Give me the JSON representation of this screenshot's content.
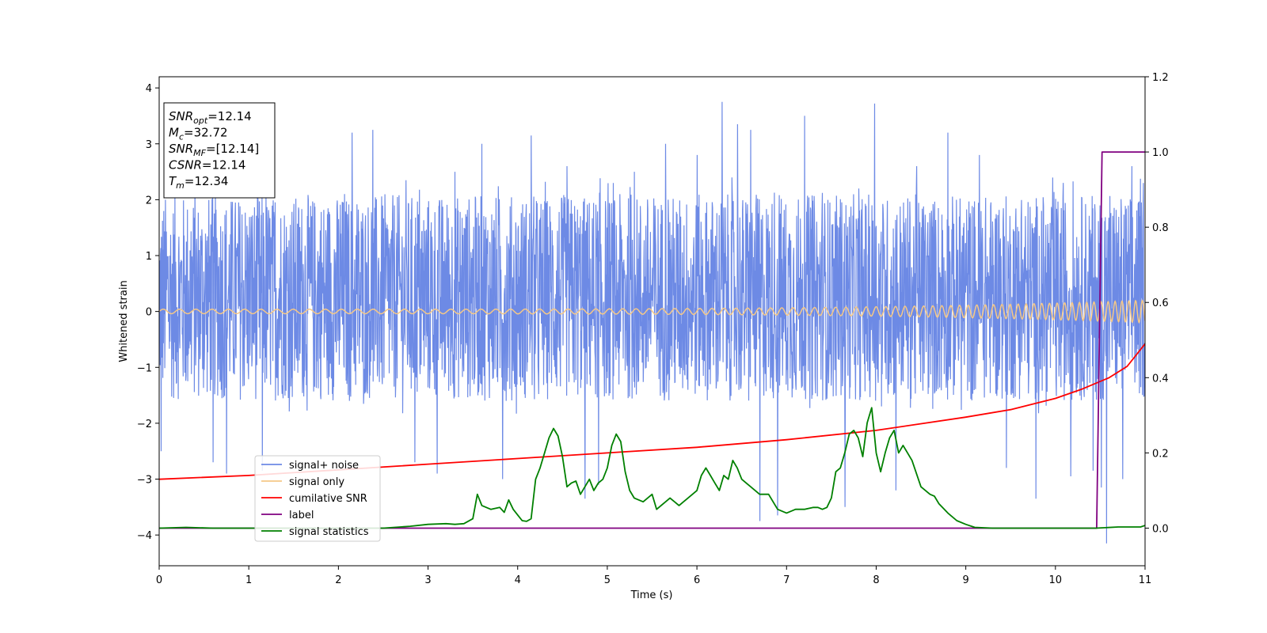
{
  "chart_data": {
    "type": "line",
    "xlabel": "Time (s)",
    "ylabel": "Whitened strain",
    "xlim": [
      0,
      11
    ],
    "ylim": [
      -4.55,
      4.2
    ],
    "y2lim": [
      -0.1,
      1.2
    ],
    "x_ticks": [
      "0",
      "1",
      "2",
      "3",
      "4",
      "5",
      "6",
      "7",
      "8",
      "9",
      "10",
      "11"
    ],
    "y_ticks": [
      "−4",
      "−3",
      "−2",
      "−1",
      "0",
      "1",
      "2",
      "3",
      "4"
    ],
    "y2_ticks": [
      "0.0",
      "0.2",
      "0.4",
      "0.6",
      "0.8",
      "1.0",
      "1.2"
    ],
    "grid": false,
    "legend_position": "lower-left",
    "annotation_lines": [
      {
        "base": "SNR",
        "sub": "opt",
        "value": "=12.14"
      },
      {
        "base": "M",
        "sub": "c",
        "value": "=32.72"
      },
      {
        "base": "SNR",
        "sub": "MF",
        "value": "=[12.14]"
      },
      {
        "base": "CSNR",
        "sub": "",
        "value": "=12.14"
      },
      {
        "base": "T",
        "sub": "m",
        "value": "=12.34"
      }
    ],
    "series": [
      {
        "name": "signal+ noise",
        "color": "#6d8ae5",
        "axis": "left",
        "kind": "noise",
        "range": [
          -1.6,
          2.1
        ],
        "peaks": [
          [
            0.02,
            -2.5
          ],
          [
            0.6,
            -2.7
          ],
          [
            0.75,
            -2.9
          ],
          [
            1.15,
            -2.85
          ],
          [
            2.15,
            3.2
          ],
          [
            2.38,
            3.25
          ],
          [
            2.85,
            -2.7
          ],
          [
            3.1,
            -2.9
          ],
          [
            3.3,
            2.5
          ],
          [
            3.6,
            3.0
          ],
          [
            3.83,
            -3.0
          ],
          [
            4.15,
            3.15
          ],
          [
            4.55,
            2.6
          ],
          [
            4.75,
            -3.35
          ],
          [
            4.9,
            -3.1
          ],
          [
            5.3,
            2.5
          ],
          [
            5.65,
            3.0
          ],
          [
            6.0,
            2.8
          ],
          [
            6.28,
            3.75
          ],
          [
            6.45,
            3.35
          ],
          [
            6.6,
            3.25
          ],
          [
            6.7,
            -3.75
          ],
          [
            6.9,
            -3.65
          ],
          [
            7.2,
            3.5
          ],
          [
            7.65,
            -3.5
          ],
          [
            7.98,
            3.72
          ],
          [
            8.22,
            -3.2
          ],
          [
            8.45,
            2.6
          ],
          [
            8.8,
            3.2
          ],
          [
            9.15,
            2.8
          ],
          [
            9.45,
            -2.8
          ],
          [
            9.78,
            -3.35
          ],
          [
            10.17,
            -2.95
          ],
          [
            10.42,
            -2.85
          ],
          [
            10.51,
            -3.15
          ],
          [
            10.57,
            -4.15
          ],
          [
            10.75,
            -3.0
          ],
          [
            10.85,
            2.6
          ],
          [
            10.98,
            2.3
          ]
        ]
      },
      {
        "name": "signal only",
        "color": "#f5c887",
        "axis": "left",
        "kind": "chirp",
        "amplitude_start": 0.04,
        "amplitude_end": 0.2,
        "frequency_start": 5.5,
        "frequency_end": 13.5
      },
      {
        "name": "cumilative SNR",
        "color": "#ff0000",
        "axis": "right",
        "x": [
          0,
          1,
          2,
          3,
          4,
          5,
          6,
          7,
          8,
          9,
          9.5,
          10,
          10.3,
          10.6,
          10.8,
          11
        ],
        "values": [
          0.13,
          0.14,
          0.155,
          0.17,
          0.185,
          0.2,
          0.215,
          0.235,
          0.26,
          0.295,
          0.315,
          0.345,
          0.37,
          0.4,
          0.43,
          0.49
        ]
      },
      {
        "name": "label",
        "color": "#800080",
        "axis": "right",
        "x": [
          0,
          10.46,
          10.52,
          11
        ],
        "values": [
          0.0,
          0.0,
          1.0,
          1.0
        ]
      },
      {
        "name": "signal statistics",
        "color": "#008000",
        "axis": "right",
        "x": [
          0,
          0.3,
          0.6,
          1.0,
          1.5,
          2.0,
          2.5,
          2.8,
          3.0,
          3.2,
          3.3,
          3.4,
          3.5,
          3.55,
          3.6,
          3.7,
          3.8,
          3.85,
          3.9,
          3.95,
          4.0,
          4.05,
          4.1,
          4.15,
          4.2,
          4.25,
          4.3,
          4.35,
          4.4,
          4.45,
          4.5,
          4.55,
          4.6,
          4.65,
          4.7,
          4.8,
          4.85,
          4.9,
          4.95,
          5.0,
          5.05,
          5.1,
          5.15,
          5.2,
          5.25,
          5.3,
          5.4,
          5.5,
          5.55,
          5.6,
          5.65,
          5.7,
          5.8,
          5.9,
          6.0,
          6.05,
          6.1,
          6.15,
          6.2,
          6.25,
          6.3,
          6.35,
          6.4,
          6.45,
          6.5,
          6.55,
          6.6,
          6.7,
          6.8,
          6.9,
          7.0,
          7.1,
          7.2,
          7.3,
          7.35,
          7.4,
          7.45,
          7.5,
          7.55,
          7.6,
          7.65,
          7.7,
          7.75,
          7.8,
          7.85,
          7.9,
          7.95,
          8.0,
          8.05,
          8.1,
          8.15,
          8.2,
          8.25,
          8.3,
          8.4,
          8.5,
          8.55,
          8.6,
          8.65,
          8.7,
          8.8,
          8.9,
          9.0,
          9.1,
          9.3,
          10.0,
          10.45,
          10.7,
          10.95,
          11.0
        ],
        "values": [
          0.0,
          0.002,
          0.0,
          0.0,
          0.0,
          0.0,
          0.0,
          0.005,
          0.01,
          0.012,
          0.01,
          0.012,
          0.025,
          0.09,
          0.06,
          0.05,
          0.055,
          0.042,
          0.075,
          0.05,
          0.035,
          0.02,
          0.018,
          0.025,
          0.13,
          0.16,
          0.2,
          0.24,
          0.265,
          0.245,
          0.19,
          0.11,
          0.12,
          0.125,
          0.09,
          0.13,
          0.1,
          0.12,
          0.13,
          0.16,
          0.22,
          0.25,
          0.23,
          0.15,
          0.1,
          0.08,
          0.07,
          0.09,
          0.05,
          0.06,
          0.07,
          0.08,
          0.06,
          0.08,
          0.1,
          0.14,
          0.16,
          0.14,
          0.12,
          0.1,
          0.14,
          0.13,
          0.18,
          0.16,
          0.13,
          0.12,
          0.11,
          0.09,
          0.09,
          0.05,
          0.04,
          0.05,
          0.05,
          0.055,
          0.055,
          0.05,
          0.055,
          0.08,
          0.15,
          0.16,
          0.2,
          0.25,
          0.26,
          0.24,
          0.19,
          0.28,
          0.32,
          0.2,
          0.15,
          0.2,
          0.24,
          0.26,
          0.2,
          0.22,
          0.18,
          0.11,
          0.1,
          0.09,
          0.085,
          0.065,
          0.04,
          0.02,
          0.01,
          0.002,
          0.0,
          0.0,
          0.0,
          0.003,
          0.003,
          0.007
        ]
      }
    ]
  }
}
